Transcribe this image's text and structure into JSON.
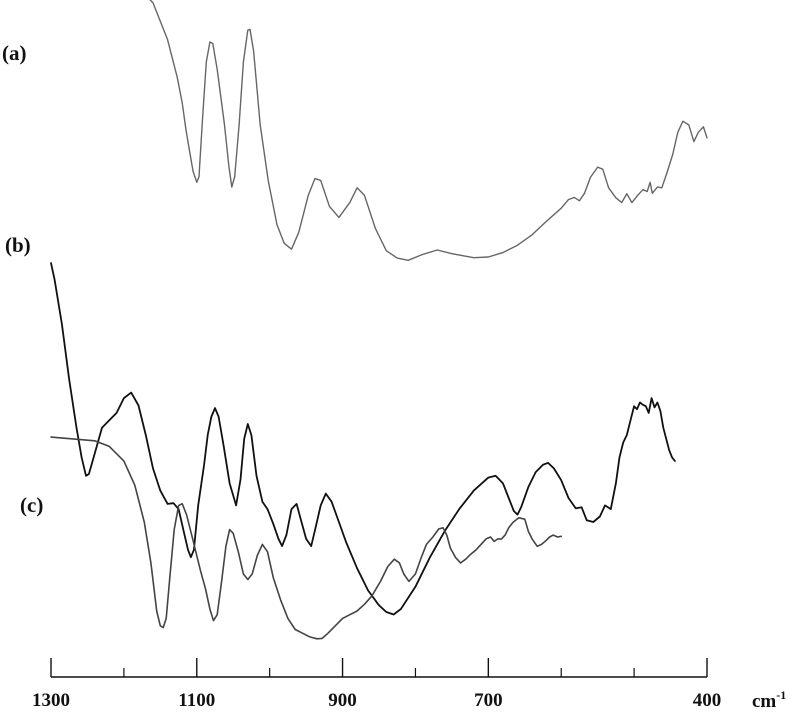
{
  "chart_data": {
    "type": "line",
    "title": "",
    "xlabel": "cm",
    "xlabel_superscript": "-1",
    "ylabel": "",
    "xlim": [
      1300,
      400
    ],
    "x_reversed": true,
    "x_tick_labels": [
      {
        "value": 1300,
        "label": "1300"
      },
      {
        "value": 1100,
        "label": "1100"
      },
      {
        "value": 900,
        "label": "900"
      },
      {
        "value": 700,
        "label": "700"
      },
      {
        "value": 400,
        "label": "400"
      }
    ],
    "x_minor_ticks": [
      1200,
      1000,
      800,
      600,
      500
    ],
    "y_axis_shown": false,
    "grid": false,
    "legend": "none",
    "series": [
      {
        "label": "(a)",
        "color": "#666666",
        "stroke_width": 1.4,
        "points": [
          [
            1300,
            0.4
          ],
          [
            1260,
            0.59
          ],
          [
            1230,
            0.58
          ],
          [
            1200,
            0.47
          ],
          [
            1175,
            0.1
          ],
          [
            1160,
            -0.2
          ],
          [
            1140,
            -1.2
          ],
          [
            1127,
            -2.2
          ],
          [
            1120,
            -2.9
          ],
          [
            1115,
            -3.6
          ],
          [
            1110,
            -4.2
          ],
          [
            1105,
            -4.76
          ],
          [
            1100,
            -5.05
          ],
          [
            1097,
            -4.9
          ],
          [
            1092,
            -3.3
          ],
          [
            1087,
            -1.8
          ],
          [
            1082,
            -1.26
          ],
          [
            1078,
            -1.3
          ],
          [
            1072,
            -2.0
          ],
          [
            1062,
            -3.5
          ],
          [
            1056,
            -4.6
          ],
          [
            1052,
            -5.18
          ],
          [
            1048,
            -4.9
          ],
          [
            1042,
            -3.5
          ],
          [
            1036,
            -1.8
          ],
          [
            1030,
            -0.94
          ],
          [
            1027,
            -0.92
          ],
          [
            1022,
            -1.5
          ],
          [
            1013,
            -3.5
          ],
          [
            1002,
            -5.0
          ],
          [
            990,
            -6.2
          ],
          [
            980,
            -6.7
          ],
          [
            970,
            -6.86
          ],
          [
            960,
            -6.4
          ],
          [
            947,
            -5.4
          ],
          [
            938,
            -4.95
          ],
          [
            930,
            -5.0
          ],
          [
            918,
            -5.7
          ],
          [
            905,
            -6.0
          ],
          [
            890,
            -5.6
          ],
          [
            880,
            -5.2
          ],
          [
            870,
            -5.4
          ],
          [
            855,
            -6.3
          ],
          [
            840,
            -6.9
          ],
          [
            825,
            -7.1
          ],
          [
            810,
            -7.16
          ],
          [
            790,
            -7.0
          ],
          [
            770,
            -6.88
          ],
          [
            750,
            -6.98
          ],
          [
            720,
            -7.09
          ],
          [
            700,
            -7.07
          ],
          [
            680,
            -6.95
          ],
          [
            660,
            -6.75
          ],
          [
            640,
            -6.47
          ],
          [
            620,
            -6.1
          ],
          [
            600,
            -5.75
          ],
          [
            590,
            -5.52
          ],
          [
            582,
            -5.46
          ],
          [
            575,
            -5.55
          ],
          [
            568,
            -5.35
          ],
          [
            560,
            -4.92
          ],
          [
            550,
            -4.64
          ],
          [
            543,
            -4.7
          ],
          [
            535,
            -5.2
          ],
          [
            525,
            -5.47
          ],
          [
            517,
            -5.6
          ],
          [
            510,
            -5.36
          ],
          [
            503,
            -5.6
          ],
          [
            495,
            -5.4
          ],
          [
            488,
            -5.25
          ],
          [
            482,
            -5.3
          ],
          [
            478,
            -5.05
          ],
          [
            475,
            -5.35
          ],
          [
            468,
            -5.18
          ],
          [
            462,
            -5.2
          ],
          [
            455,
            -4.8
          ],
          [
            447,
            -4.3
          ],
          [
            440,
            -3.7
          ],
          [
            433,
            -3.4
          ],
          [
            425,
            -3.5
          ],
          [
            418,
            -3.95
          ],
          [
            412,
            -3.7
          ],
          [
            405,
            -3.55
          ],
          [
            400,
            -3.85
          ]
        ]
      },
      {
        "label": "(b)",
        "color": "#111111",
        "stroke_width": 1.8,
        "points": [
          [
            1300,
            -2.95
          ],
          [
            1295,
            -3.4
          ],
          [
            1285,
            -4.6
          ],
          [
            1275,
            -6.1
          ],
          [
            1265,
            -7.4
          ],
          [
            1258,
            -8.2
          ],
          [
            1252,
            -8.7
          ],
          [
            1248,
            -8.65
          ],
          [
            1240,
            -8.1
          ],
          [
            1230,
            -7.4
          ],
          [
            1220,
            -7.2
          ],
          [
            1210,
            -7.0
          ],
          [
            1200,
            -6.6
          ],
          [
            1190,
            -6.45
          ],
          [
            1180,
            -6.8
          ],
          [
            1170,
            -7.6
          ],
          [
            1160,
            -8.5
          ],
          [
            1150,
            -9.1
          ],
          [
            1140,
            -9.46
          ],
          [
            1132,
            -9.44
          ],
          [
            1125,
            -9.6
          ],
          [
            1118,
            -10.2
          ],
          [
            1112,
            -10.7
          ],
          [
            1108,
            -10.9
          ],
          [
            1104,
            -10.7
          ],
          [
            1098,
            -9.5
          ],
          [
            1090,
            -8.4
          ],
          [
            1085,
            -7.6
          ],
          [
            1080,
            -7.1
          ],
          [
            1075,
            -6.87
          ],
          [
            1070,
            -7.1
          ],
          [
            1063,
            -7.9
          ],
          [
            1055,
            -8.9
          ],
          [
            1046,
            -9.5
          ],
          [
            1040,
            -8.8
          ],
          [
            1035,
            -7.7
          ],
          [
            1030,
            -7.3
          ],
          [
            1025,
            -7.6
          ],
          [
            1018,
            -8.7
          ],
          [
            1010,
            -9.4
          ],
          [
            1003,
            -9.6
          ],
          [
            995,
            -10.0
          ],
          [
            988,
            -10.4
          ],
          [
            983,
            -10.6
          ],
          [
            977,
            -10.3
          ],
          [
            970,
            -9.6
          ],
          [
            963,
            -9.46
          ],
          [
            957,
            -9.9
          ],
          [
            950,
            -10.4
          ],
          [
            943,
            -10.6
          ],
          [
            937,
            -10.1
          ],
          [
            930,
            -9.5
          ],
          [
            923,
            -9.18
          ],
          [
            915,
            -9.4
          ],
          [
            905,
            -9.95
          ],
          [
            895,
            -10.5
          ],
          [
            880,
            -11.2
          ],
          [
            865,
            -11.8
          ],
          [
            850,
            -12.2
          ],
          [
            840,
            -12.38
          ],
          [
            830,
            -12.45
          ],
          [
            820,
            -12.3
          ],
          [
            800,
            -11.7
          ],
          [
            780,
            -10.9
          ],
          [
            760,
            -10.2
          ],
          [
            740,
            -9.6
          ],
          [
            720,
            -9.1
          ],
          [
            700,
            -8.75
          ],
          [
            690,
            -8.7
          ],
          [
            680,
            -8.9
          ],
          [
            672,
            -9.3
          ],
          [
            665,
            -9.65
          ],
          [
            660,
            -9.75
          ],
          [
            655,
            -9.55
          ],
          [
            645,
            -9.0
          ],
          [
            635,
            -8.6
          ],
          [
            625,
            -8.4
          ],
          [
            618,
            -8.35
          ],
          [
            610,
            -8.5
          ],
          [
            600,
            -8.82
          ],
          [
            590,
            -9.3
          ],
          [
            580,
            -9.58
          ],
          [
            572,
            -9.55
          ],
          [
            565,
            -9.9
          ],
          [
            556,
            -9.95
          ],
          [
            547,
            -9.8
          ],
          [
            540,
            -9.5
          ],
          [
            532,
            -9.6
          ],
          [
            525,
            -8.9
          ],
          [
            520,
            -8.2
          ],
          [
            515,
            -7.8
          ],
          [
            510,
            -7.6
          ],
          [
            505,
            -7.2
          ],
          [
            500,
            -6.82
          ],
          [
            496,
            -6.9
          ],
          [
            492,
            -6.72
          ],
          [
            488,
            -6.78
          ],
          [
            484,
            -6.82
          ],
          [
            480,
            -7.0
          ],
          [
            476,
            -6.6
          ],
          [
            472,
            -6.85
          ],
          [
            468,
            -6.72
          ],
          [
            464,
            -6.95
          ],
          [
            460,
            -7.4
          ],
          [
            456,
            -7.7
          ],
          [
            452,
            -8.0
          ],
          [
            448,
            -8.2
          ],
          [
            444,
            -8.3
          ]
        ]
      },
      {
        "label": "(c)",
        "color": "#444444",
        "stroke_width": 1.6,
        "points": [
          [
            1300,
            -0.3
          ],
          [
            1270,
            -0.35
          ],
          [
            1240,
            -0.4
          ],
          [
            1220,
            -0.55
          ],
          [
            1200,
            -0.95
          ],
          [
            1185,
            -1.6
          ],
          [
            1172,
            -2.6
          ],
          [
            1163,
            -3.7
          ],
          [
            1155,
            -5.0
          ],
          [
            1150,
            -5.4
          ],
          [
            1146,
            -5.45
          ],
          [
            1142,
            -5.2
          ],
          [
            1137,
            -4.1
          ],
          [
            1131,
            -2.8
          ],
          [
            1125,
            -2.15
          ],
          [
            1120,
            -2.1
          ],
          [
            1114,
            -2.4
          ],
          [
            1105,
            -3.1
          ],
          [
            1095,
            -3.9
          ],
          [
            1088,
            -4.4
          ],
          [
            1082,
            -4.95
          ],
          [
            1077,
            -5.26
          ],
          [
            1072,
            -5.1
          ],
          [
            1066,
            -4.2
          ],
          [
            1060,
            -3.25
          ],
          [
            1055,
            -2.8
          ],
          [
            1050,
            -2.9
          ],
          [
            1043,
            -3.4
          ],
          [
            1036,
            -4.0
          ],
          [
            1030,
            -4.15
          ],
          [
            1024,
            -4.0
          ],
          [
            1017,
            -3.5
          ],
          [
            1010,
            -3.2
          ],
          [
            1003,
            -3.4
          ],
          [
            995,
            -4.1
          ],
          [
            985,
            -4.7
          ],
          [
            975,
            -5.2
          ],
          [
            965,
            -5.5
          ],
          [
            955,
            -5.6
          ],
          [
            945,
            -5.7
          ],
          [
            935,
            -5.75
          ],
          [
            928,
            -5.74
          ],
          [
            920,
            -5.6
          ],
          [
            910,
            -5.4
          ],
          [
            900,
            -5.2
          ],
          [
            890,
            -5.1
          ],
          [
            880,
            -5.0
          ],
          [
            870,
            -4.82
          ],
          [
            860,
            -4.6
          ],
          [
            848,
            -4.2
          ],
          [
            838,
            -3.8
          ],
          [
            829,
            -3.6
          ],
          [
            822,
            -3.7
          ],
          [
            816,
            -4.0
          ],
          [
            809,
            -4.2
          ],
          [
            800,
            -4.0
          ],
          [
            792,
            -3.55
          ],
          [
            785,
            -3.2
          ],
          [
            776,
            -3.0
          ],
          [
            768,
            -2.78
          ],
          [
            762,
            -2.75
          ],
          [
            757,
            -2.95
          ],
          [
            752,
            -3.3
          ],
          [
            745,
            -3.55
          ],
          [
            738,
            -3.7
          ],
          [
            731,
            -3.6
          ],
          [
            725,
            -3.48
          ],
          [
            717,
            -3.35
          ],
          [
            710,
            -3.2
          ],
          [
            703,
            -3.05
          ],
          [
            697,
            -3.0
          ],
          [
            692,
            -3.12
          ],
          [
            687,
            -3.05
          ],
          [
            682,
            -3.05
          ],
          [
            677,
            -2.95
          ],
          [
            672,
            -2.75
          ],
          [
            666,
            -2.6
          ],
          [
            658,
            -2.48
          ],
          [
            650,
            -2.52
          ],
          [
            645,
            -2.85
          ],
          [
            640,
            -3.05
          ],
          [
            633,
            -3.25
          ],
          [
            627,
            -3.2
          ],
          [
            621,
            -3.1
          ],
          [
            616,
            -3.0
          ],
          [
            611,
            -2.95
          ],
          [
            605,
            -3.0
          ],
          [
            600,
            -2.98
          ]
        ]
      }
    ]
  }
}
